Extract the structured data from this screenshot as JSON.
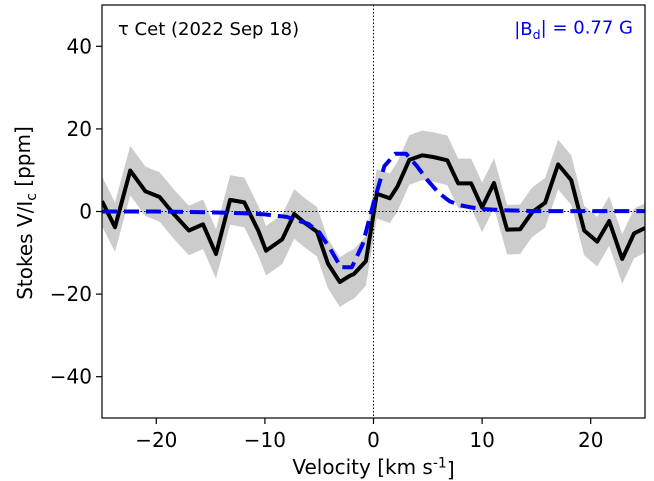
{
  "chart_data": {
    "type": "line",
    "title": "",
    "annotation_left": "τ Cet (2022 Sep 18)",
    "annotation_right": "|B_d| = 0.77 G",
    "xlabel": "Velocity [km s^-1]",
    "ylabel": "Stokes V/I_c [ppm]",
    "xlim": [
      -25,
      25
    ],
    "ylim": [
      -50,
      50
    ],
    "xticks": [
      -20,
      -10,
      0,
      10,
      20
    ],
    "xtick_labels": [
      "−20",
      "−10",
      "0",
      "10",
      "20"
    ],
    "yticks": [
      -40,
      -20,
      0,
      20,
      40
    ],
    "ytick_labels": [
      "−40",
      "−20",
      "0",
      "20",
      "40"
    ],
    "reference_lines": {
      "x": 0,
      "y": 0,
      "style": "dotted"
    },
    "grid": false,
    "colors": {
      "observed": "#000000",
      "model": "#0000ee",
      "error_band": "#cccccc"
    },
    "series": [
      {
        "style": "solid",
        "x": [
          -25.0,
          -23.8,
          -22.4,
          -21.0,
          -19.7,
          -18.4,
          -17.0,
          -15.7,
          -14.5,
          -13.2,
          -11.9,
          -10.6,
          -9.9,
          -8.4,
          -7.3,
          -6.3,
          -5.2,
          -4.2,
          -3.1,
          -2.2,
          -1.8,
          -0.7,
          0.3,
          1.5,
          2.2,
          3.3,
          4.5,
          5.5,
          6.8,
          7.8,
          9.0,
          10.0,
          11.1,
          12.3,
          13.5,
          14.6,
          15.8,
          17.0,
          18.2,
          19.4,
          20.6,
          21.7,
          22.9,
          24.0,
          25.0
        ],
        "y": [
          2.5,
          -3.8,
          9.9,
          4.9,
          3.5,
          -0.6,
          -4.6,
          -3.1,
          -10.3,
          2.8,
          2.2,
          -4.7,
          -9.5,
          -6.7,
          -0.6,
          -2.8,
          -4.9,
          -12.6,
          -17.1,
          -15.6,
          -15.1,
          -12.0,
          4.3,
          3.2,
          6.0,
          12.5,
          13.6,
          13.2,
          12.4,
          6.8,
          6.8,
          1.0,
          6.9,
          -4.4,
          -4.3,
          -0.2,
          2.1,
          11.4,
          7.6,
          -4.6,
          -7.3,
          -2.3,
          -11.5,
          -5.3,
          -4.0
        ]
      },
      {
        "style": "dashed",
        "x": [
          -25,
          -20,
          -15,
          -12,
          -10,
          -8,
          -6,
          -5,
          -4,
          -3,
          -2,
          -1,
          0,
          1,
          2,
          3,
          4,
          5,
          6,
          7,
          8,
          9,
          10,
          12,
          15,
          20,
          25
        ],
        "y": [
          0,
          0,
          -0.2,
          -0.4,
          -0.7,
          -1.3,
          -3.0,
          -5.0,
          -9.0,
          -13.5,
          -13.5,
          -8.0,
          2.0,
          11.0,
          14.0,
          14.0,
          11.0,
          7.5,
          4.5,
          2.5,
          1.5,
          1.0,
          0.6,
          0.3,
          0.1,
          0.1,
          0.1
        ]
      }
    ],
    "error_band": {
      "x": [
        -25.0,
        -23.8,
        -22.4,
        -21.0,
        -19.7,
        -18.4,
        -17.0,
        -15.7,
        -14.5,
        -13.2,
        -11.9,
        -10.6,
        -9.9,
        -8.4,
        -7.3,
        -6.3,
        -5.2,
        -4.2,
        -3.1,
        -2.2,
        -1.8,
        -0.7,
        0.3,
        1.5,
        2.2,
        3.3,
        4.5,
        5.5,
        6.8,
        7.8,
        9.0,
        10.0,
        11.1,
        12.3,
        13.5,
        14.6,
        15.8,
        17.0,
        18.2,
        19.4,
        20.6,
        21.7,
        22.9,
        24.0,
        25.0
      ],
      "y_low": [
        -3.5,
        -9.8,
        3.9,
        -1.1,
        -2.5,
        -6.6,
        -10.6,
        -9.1,
        -16.3,
        -3.2,
        -3.8,
        -10.7,
        -15.5,
        -12.7,
        -6.6,
        -8.8,
        -10.9,
        -18.6,
        -23.1,
        -21.6,
        -21.1,
        -18.0,
        -1.7,
        -2.8,
        0.0,
        6.5,
        7.6,
        7.2,
        6.4,
        0.8,
        0.8,
        -5.0,
        0.9,
        -10.4,
        -10.3,
        -6.2,
        -3.9,
        5.4,
        1.6,
        -10.6,
        -13.3,
        -8.3,
        -17.5,
        -11.3,
        -10.0
      ],
      "y_high": [
        8.5,
        2.2,
        15.9,
        10.9,
        9.5,
        5.4,
        1.4,
        2.9,
        -4.3,
        8.8,
        8.2,
        1.3,
        -3.5,
        -0.7,
        5.4,
        3.2,
        1.1,
        -6.6,
        -11.1,
        -9.6,
        -9.1,
        -6.0,
        10.3,
        9.2,
        12.0,
        18.5,
        19.6,
        19.2,
        18.4,
        12.8,
        12.8,
        7.0,
        12.9,
        1.6,
        1.7,
        5.8,
        8.1,
        17.4,
        13.6,
        1.4,
        -1.3,
        3.7,
        -5.5,
        0.7,
        2.0
      ]
    }
  }
}
